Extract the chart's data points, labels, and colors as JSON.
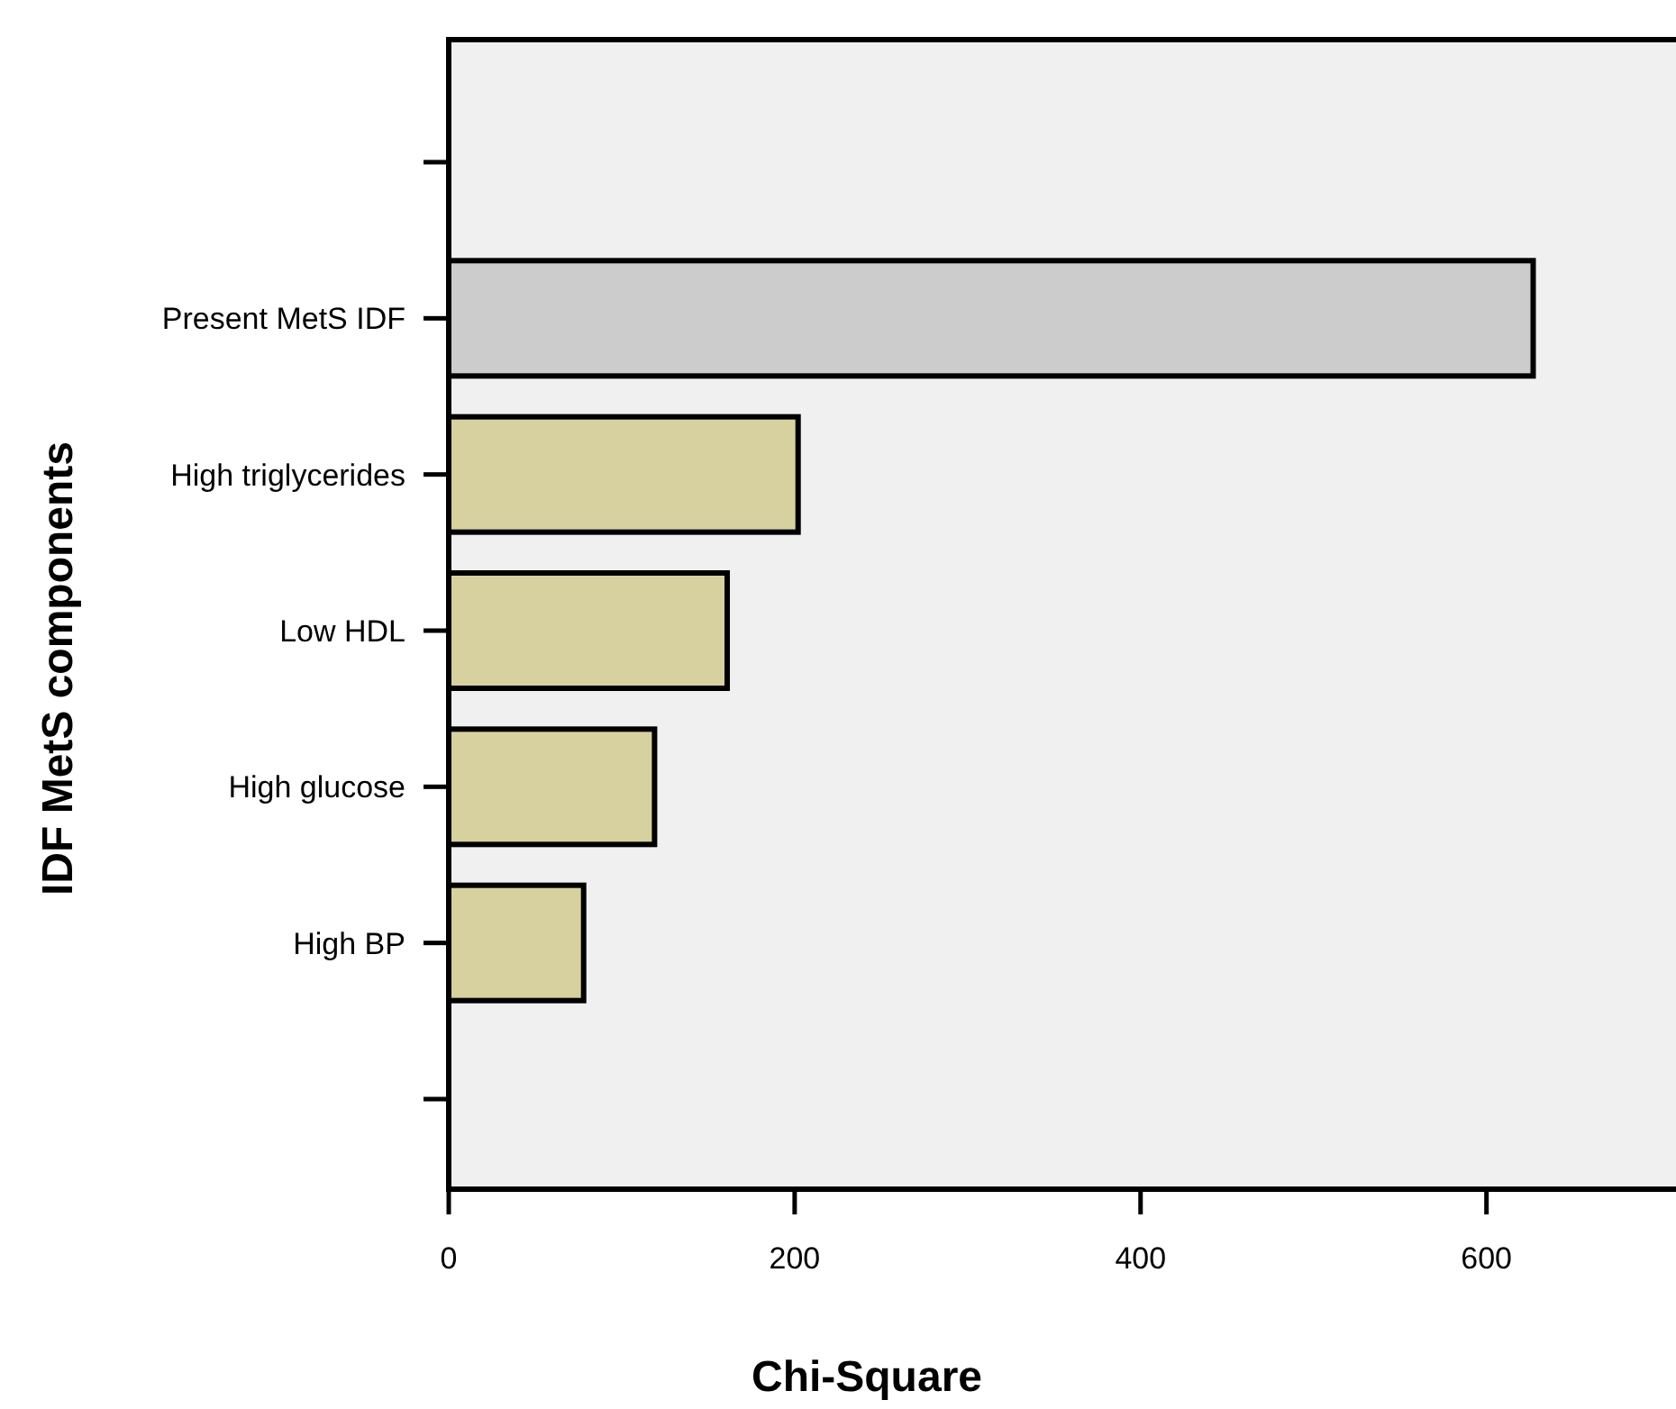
{
  "chart_data": {
    "type": "bar",
    "orientation": "horizontal",
    "xlabel": "Chi-Square",
    "ylabel": "IDF MetS components",
    "categories": [
      null,
      "Present MetS IDF",
      "High triglycerides",
      "Low HDL",
      "High glucose",
      "High BP",
      null
    ],
    "values": [
      null,
      627,
      202,
      161,
      119,
      78,
      null
    ],
    "colors": [
      null,
      "#cccccc",
      "#d6d19e",
      "#d6d19e",
      "#d6d19e",
      "#d6d19e",
      null
    ],
    "xlim": [
      0,
      720
    ],
    "xticks": [
      0,
      200,
      400,
      600
    ],
    "grid": false
  }
}
